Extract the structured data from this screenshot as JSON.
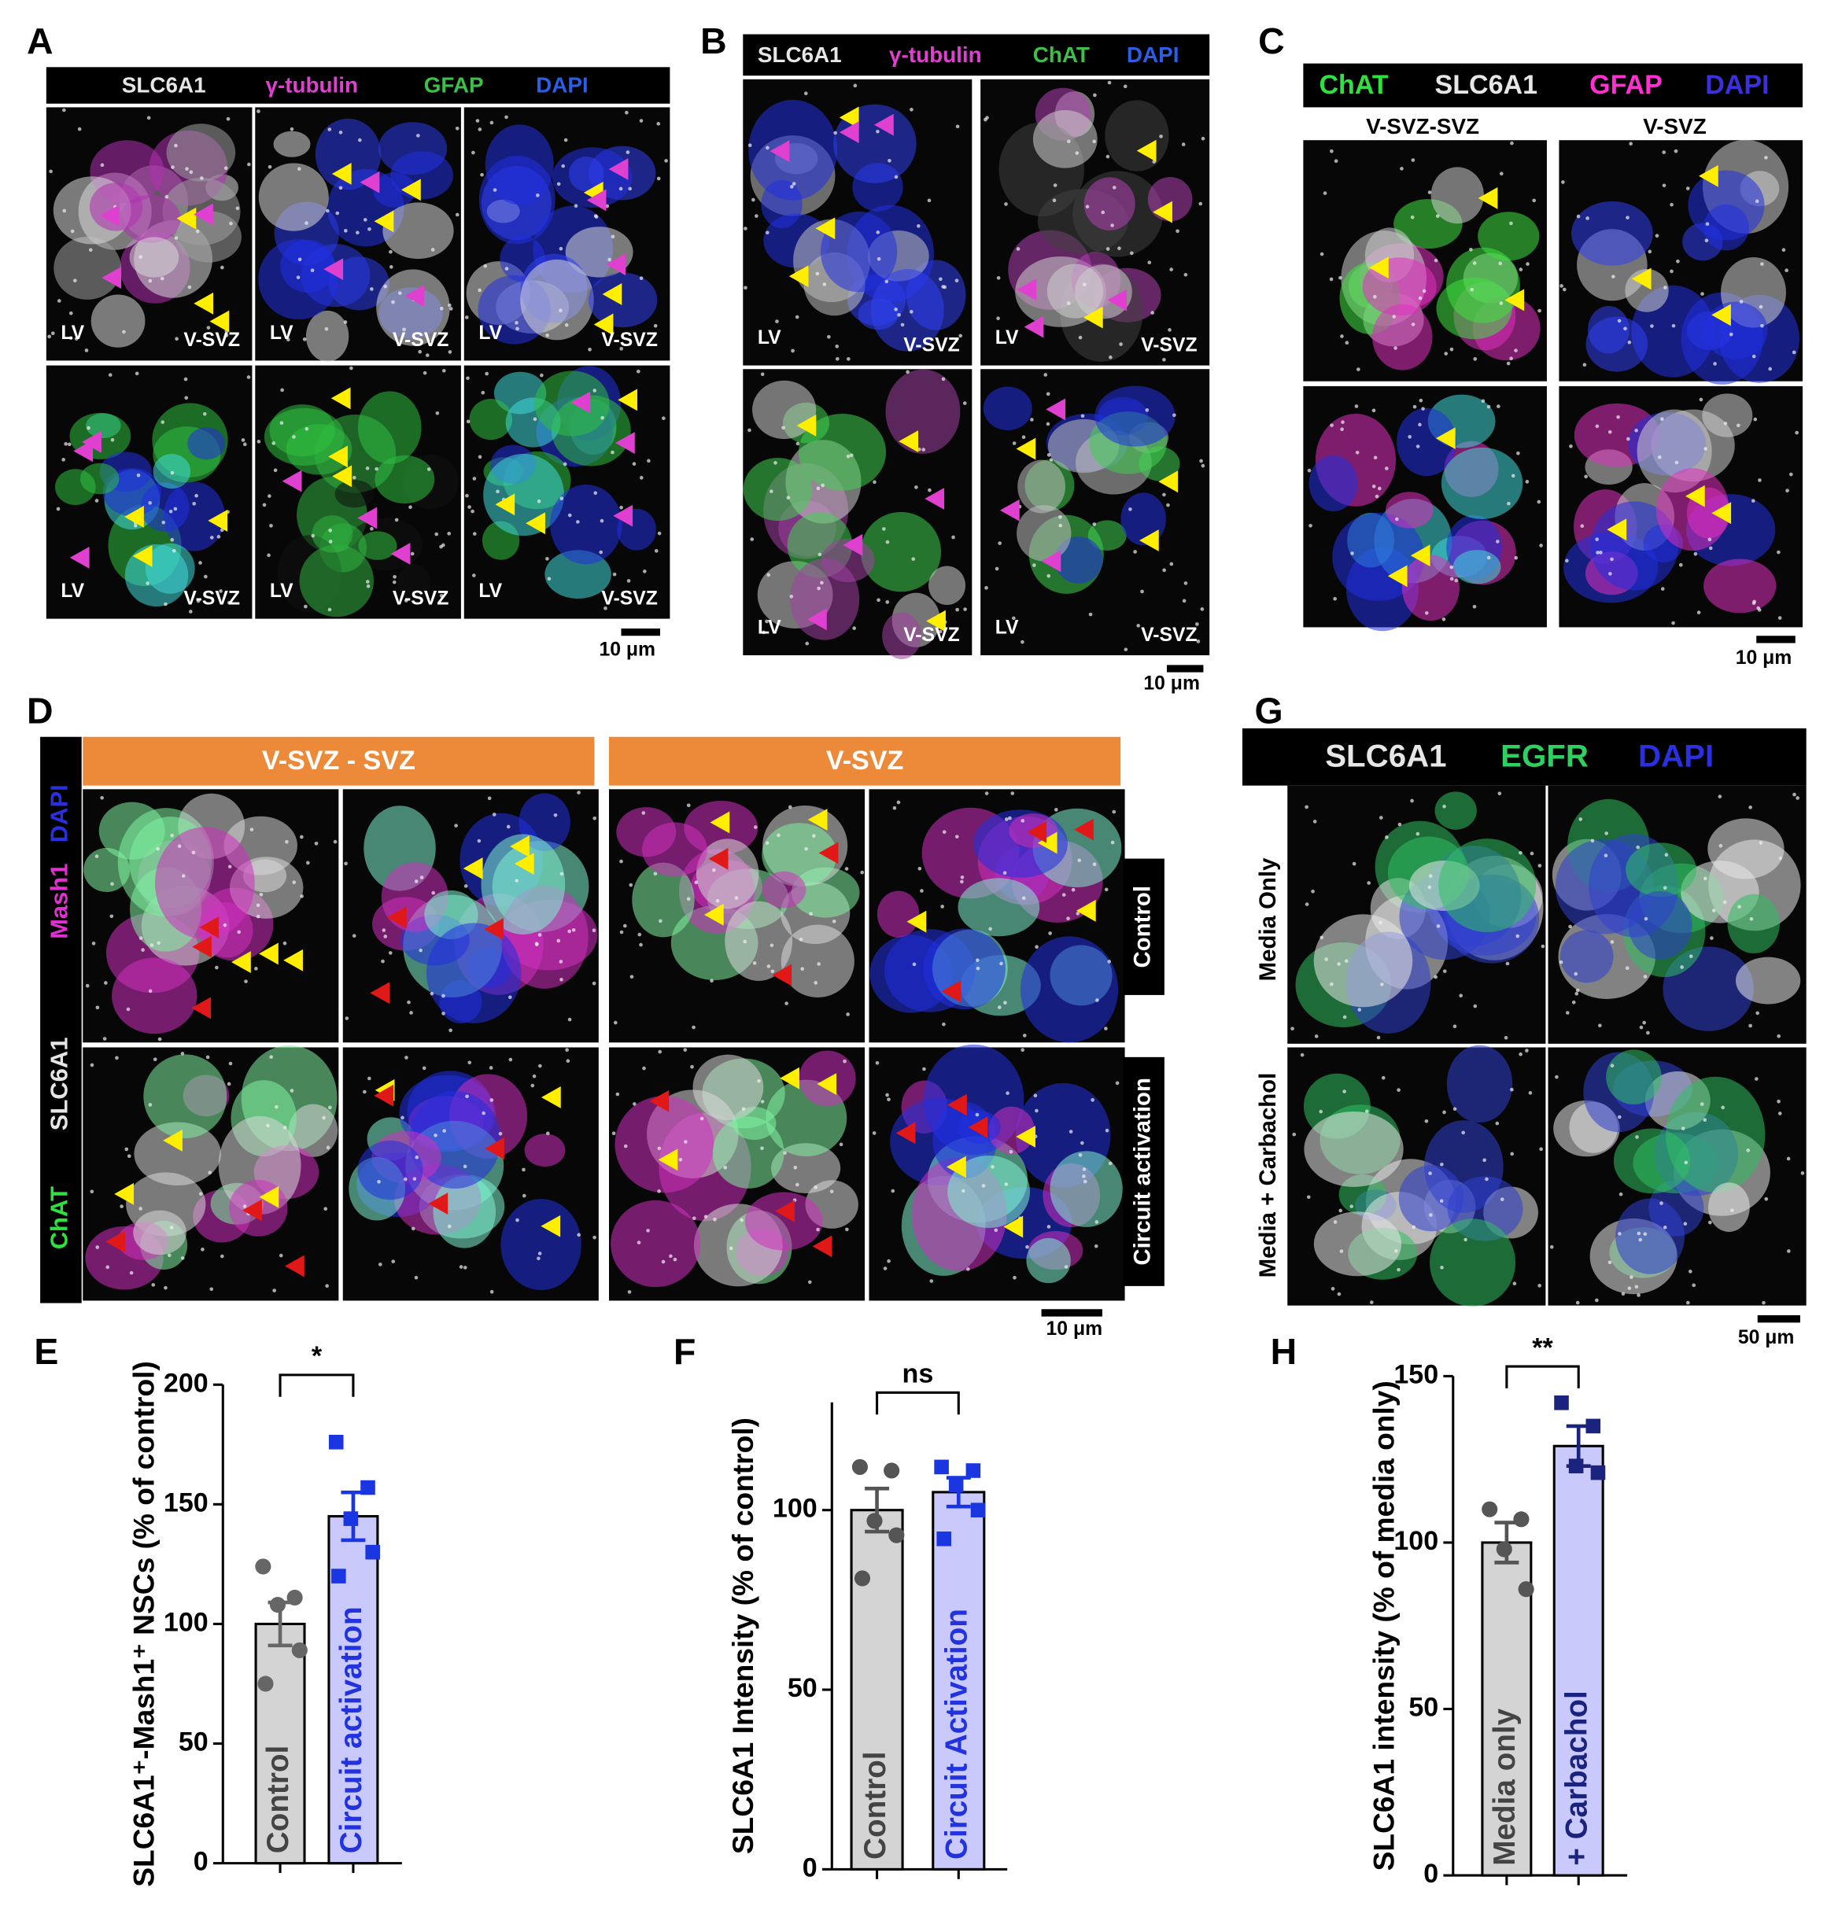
{
  "panels": {
    "A": {
      "label": "A",
      "channels": [
        {
          "name": "SLC6A1",
          "color": "#e6e6e6"
        },
        {
          "name": "γ-tubulin",
          "color": "#e040d0"
        },
        {
          "name": "GFAP",
          "color": "#3cc04a"
        },
        {
          "name": "DAPI",
          "color": "#2a5ee8"
        }
      ],
      "tile_labels": [
        [
          "LV",
          "V-SVZ"
        ],
        [
          "LV",
          "V-SVZ"
        ],
        [
          "LV",
          "V-SVZ"
        ],
        [
          "LV",
          "V-SVZ"
        ],
        [
          "LV",
          "V-SVZ"
        ],
        [
          "LV",
          "V-SVZ"
        ]
      ],
      "scale_bar": "10 μm"
    },
    "B": {
      "label": "B",
      "channels": [
        {
          "name": "SLC6A1",
          "color": "#e6e6e6"
        },
        {
          "name": "γ-tubulin",
          "color": "#e040d0"
        },
        {
          "name": "ChAT",
          "color": "#3cc04a"
        },
        {
          "name": "DAPI",
          "color": "#2a5ee8"
        }
      ],
      "tile_labels": [
        [
          "LV",
          "V-SVZ"
        ],
        [
          "LV",
          "V-SVZ"
        ],
        [
          "LV",
          "V-SVZ"
        ],
        [
          "LV",
          "V-SVZ"
        ]
      ],
      "scale_bar": "10 μm"
    },
    "C": {
      "label": "C",
      "channels": [
        {
          "name": "ChAT",
          "color": "#30e040"
        },
        {
          "name": "SLC6A1",
          "color": "#e6e6e6"
        },
        {
          "name": "GFAP",
          "color": "#ff30d0"
        },
        {
          "name": "DAPI",
          "color": "#3a30e0"
        }
      ],
      "columns": [
        "V-SVZ-SVZ",
        "V-SVZ"
      ],
      "scale_bar": "10 μm"
    },
    "D": {
      "label": "D",
      "channels": [
        {
          "name": "ChAT",
          "color": "#30e040"
        },
        {
          "name": "SLC6A1",
          "color": "#e6e6e6"
        },
        {
          "name": "Mash1",
          "color": "#e030d0"
        },
        {
          "name": "DAPI",
          "color": "#2a30e0"
        }
      ],
      "regions": [
        "V-SVZ - SVZ",
        "V-SVZ"
      ],
      "conditions": [
        "Control",
        "Circuit activation"
      ],
      "scale_bar": "10 μm"
    },
    "G": {
      "label": "G",
      "channels": [
        {
          "name": "SLC6A1",
          "color": "#e6e6e6"
        },
        {
          "name": "EGFR",
          "color": "#30d060"
        },
        {
          "name": "DAPI",
          "color": "#2a30e0"
        }
      ],
      "conditions": [
        "Media Only",
        "Media + Carbachol"
      ],
      "scale_bar": "50 μm"
    }
  },
  "chart_data": [
    {
      "type": "bar",
      "panel_label": "E",
      "ylabel": "SLC6A1⁺-Mash1⁺ NSCs (% of control)",
      "categories": [
        "Control",
        "Circuit activation"
      ],
      "values": [
        100,
        145
      ],
      "errors": [
        9,
        10
      ],
      "points": [
        [
          124,
          111,
          108,
          89,
          75
        ],
        [
          176,
          157,
          144,
          130,
          120
        ]
      ],
      "ylim": [
        0,
        200
      ],
      "yticks": [
        0,
        50,
        100,
        150,
        200
      ],
      "colors": [
        "#d4d4d4",
        "#c9c9fb"
      ],
      "text_colors": [
        "#444444",
        "#2233dd"
      ],
      "point_colors": [
        "#666666",
        "#1a36e0"
      ],
      "markers": [
        "circle",
        "square"
      ],
      "significance": "*"
    },
    {
      "type": "bar",
      "panel_label": "F",
      "ylabel": "SLC6A1 Intensity (% of control)",
      "categories": [
        "Control",
        "Circuit Activation"
      ],
      "values": [
        100,
        105
      ],
      "errors": [
        6,
        4
      ],
      "points": [
        [
          112,
          111,
          97,
          93,
          81
        ],
        [
          112,
          111,
          107,
          100,
          92
        ]
      ],
      "ylim": [
        0,
        130
      ],
      "yticks": [
        0,
        50,
        100
      ],
      "colors": [
        "#d4d4d4",
        "#c9c9fb"
      ],
      "text_colors": [
        "#444444",
        "#2233dd"
      ],
      "point_colors": [
        "#555555",
        "#1a36e0"
      ],
      "markers": [
        "circle",
        "square"
      ],
      "significance": "ns"
    },
    {
      "type": "bar",
      "panel_label": "H",
      "ylabel": "SLC6A1 intensity (% of media only)",
      "categories": [
        "Media only",
        "+ Carbachol"
      ],
      "values": [
        100,
        129
      ],
      "errors": [
        6,
        6
      ],
      "points": [
        [
          110,
          107,
          98,
          86
        ],
        [
          142,
          135,
          123,
          121
        ]
      ],
      "ylim": [
        0,
        150
      ],
      "yticks": [
        0,
        50,
        100,
        150
      ],
      "colors": [
        "#d4d4d4",
        "#c9c9fb"
      ],
      "text_colors": [
        "#444444",
        "#1a237e"
      ],
      "point_colors": [
        "#555555",
        "#1a237e"
      ],
      "markers": [
        "circle",
        "square"
      ],
      "significance": "**"
    }
  ]
}
